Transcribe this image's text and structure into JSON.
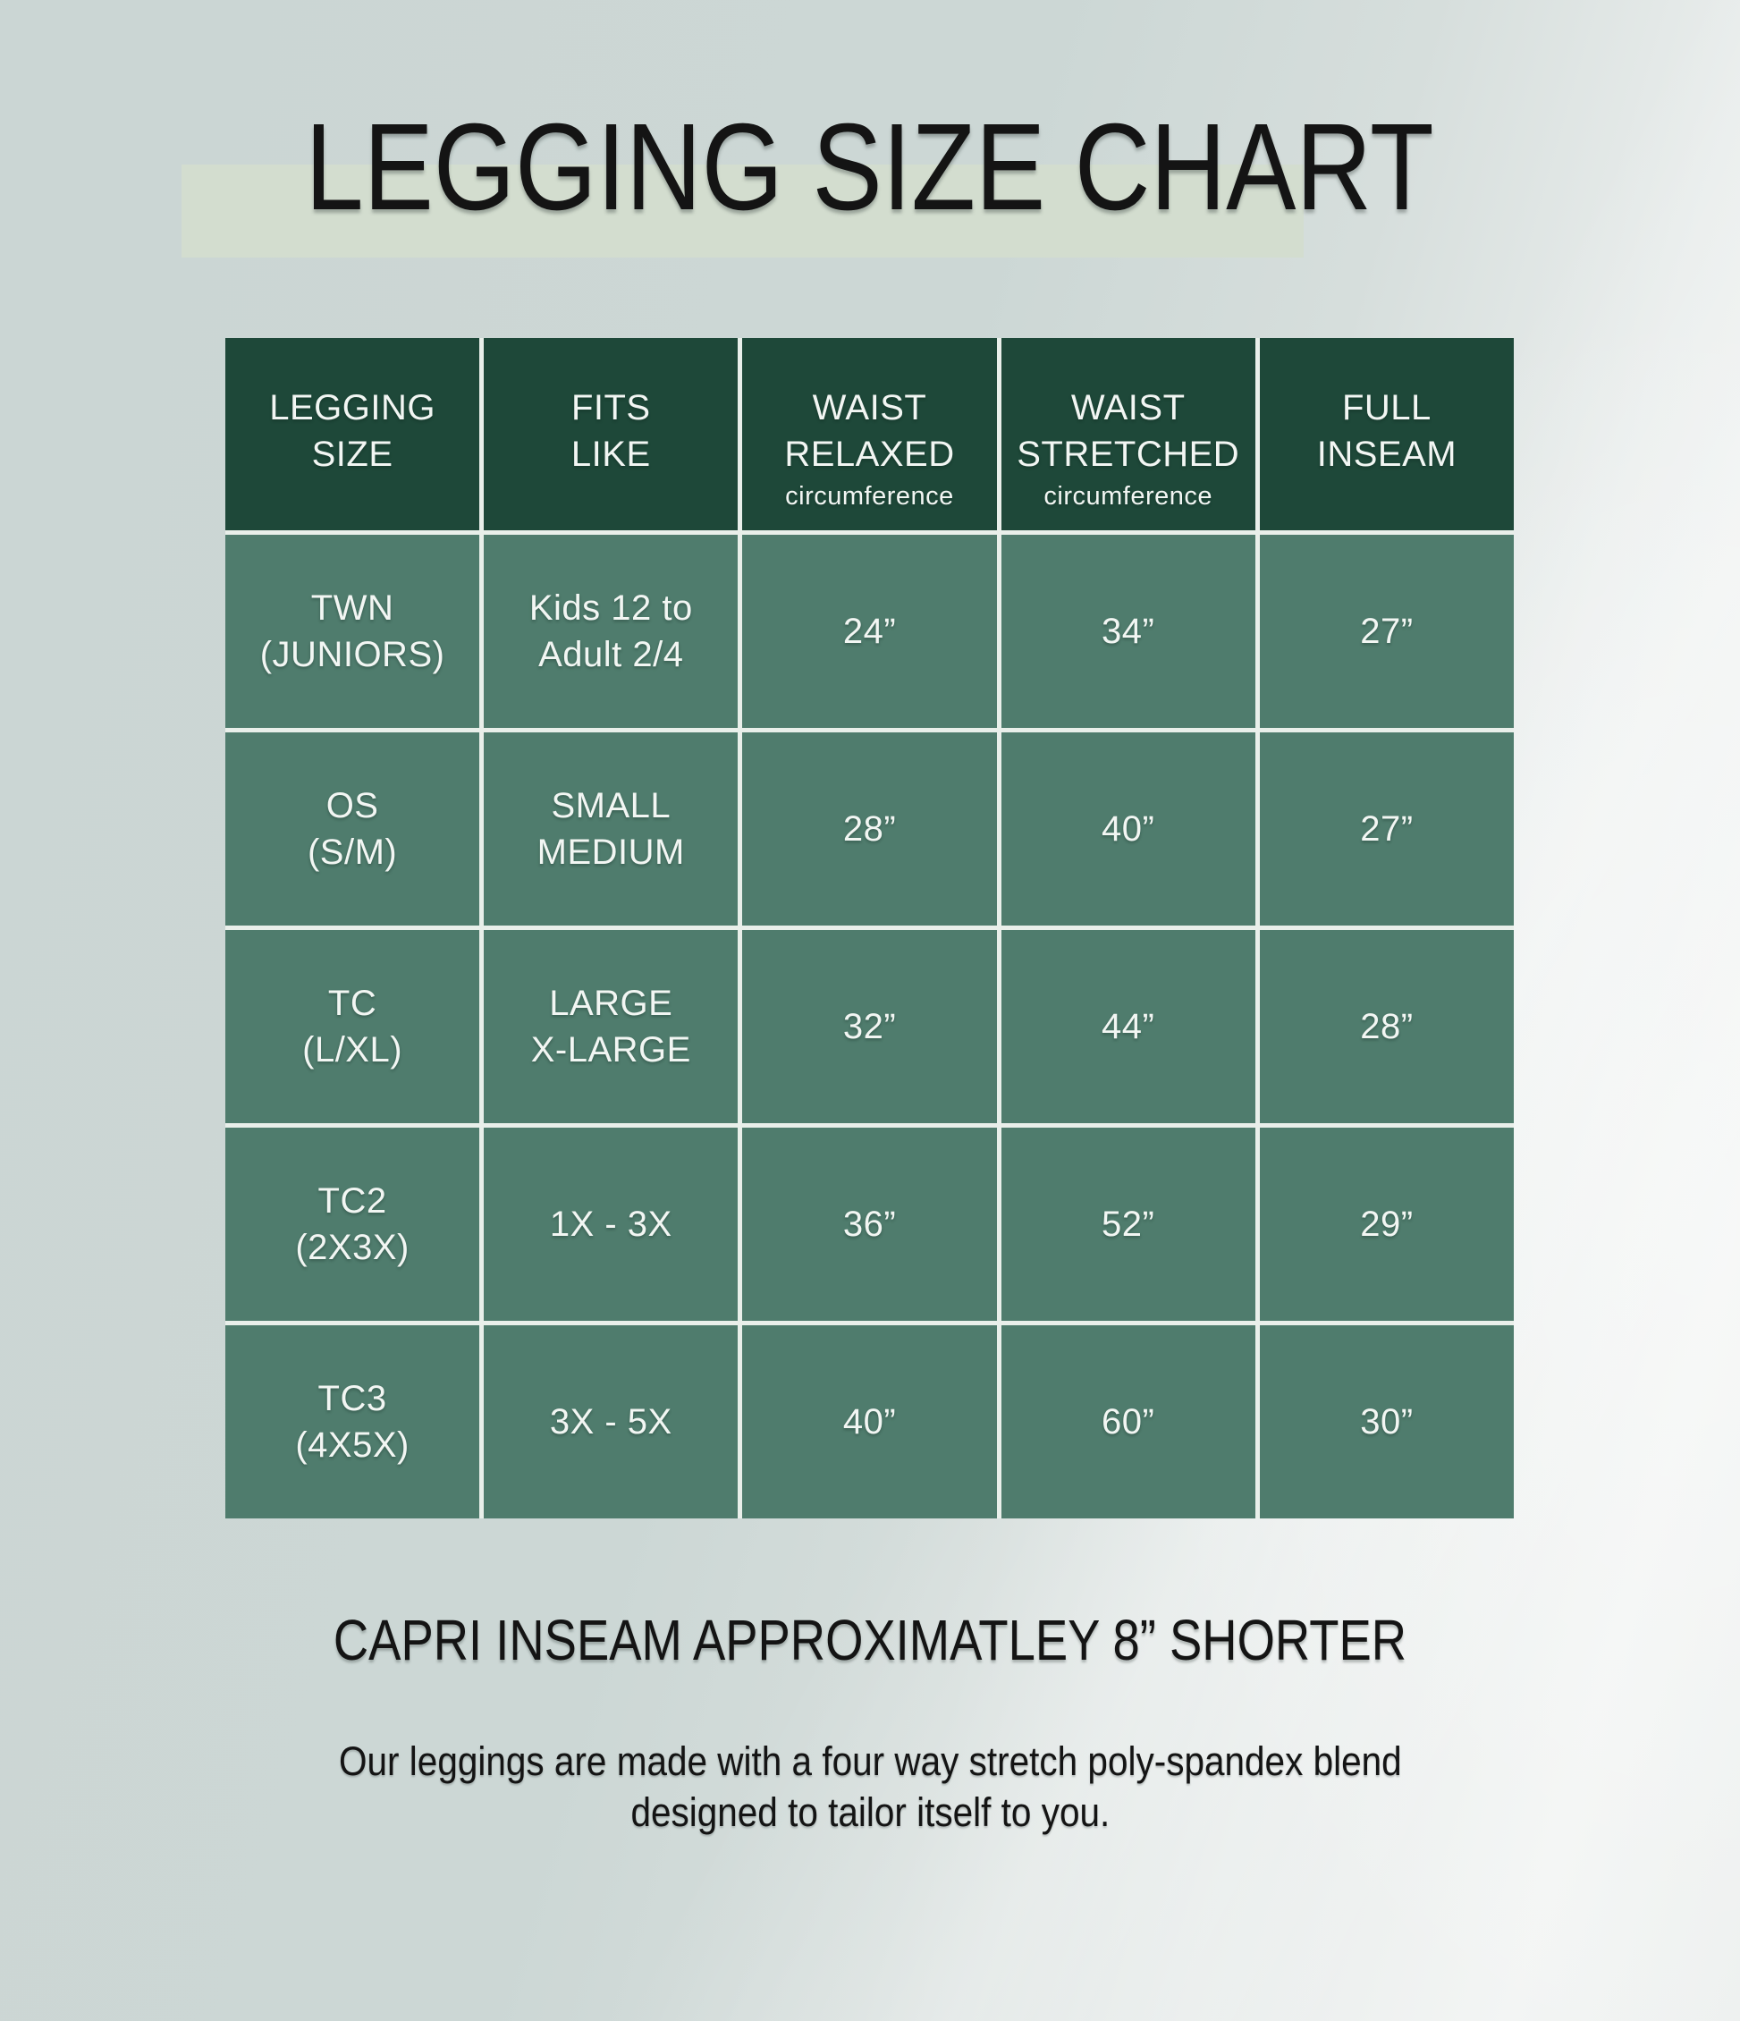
{
  "title": "LEGGING SIZE CHART",
  "table": {
    "headers": [
      {
        "label": "LEGGING\nSIZE",
        "sub": ""
      },
      {
        "label": "FITS\nLIKE",
        "sub": ""
      },
      {
        "label": "WAIST\nRELAXED",
        "sub": "circumference"
      },
      {
        "label": "WAIST\nSTRETCHED",
        "sub": "circumference"
      },
      {
        "label": "FULL\nINSEAM",
        "sub": ""
      }
    ],
    "rows": [
      {
        "cells": [
          "TWN\n(JUNIORS)",
          "Kids 12 to\nAdult 2/4",
          "24”",
          "34”",
          "27”"
        ]
      },
      {
        "cells": [
          "OS\n(S/M)",
          "SMALL\nMEDIUM",
          "28”",
          "40”",
          "27”"
        ]
      },
      {
        "cells": [
          "TC\n(L/XL)",
          "LARGE\nX-LARGE",
          "32”",
          "44”",
          "28”"
        ]
      },
      {
        "cells": [
          "TC2\n(2X3X)",
          "1X - 3X",
          "36”",
          "52”",
          "29”"
        ]
      },
      {
        "cells": [
          "TC3\n(4X5X)",
          "3X - 5X",
          "40”",
          "60”",
          "30”"
        ]
      }
    ]
  },
  "footer": {
    "note": "CAPRI INSEAM APPROXIMATLEY 8” SHORTER",
    "description_line1": "Our leggings are made with a four way stretch poly-spandex blend",
    "description_line2": "designed to tailor itself to you."
  },
  "colors": {
    "header_green": "#1E4839",
    "body_green": "#4F7C6D",
    "grid_line": "#E9EFEA",
    "table_text": "#F2F6F3",
    "heading_text": "#141414",
    "title_band": "#D3DDCF",
    "background_left": "#CBD6D4",
    "background_right": "#F2F4F4"
  },
  "chart_data": {
    "type": "table",
    "title": "LEGGING SIZE CHART",
    "columns": [
      "LEGGING SIZE",
      "FITS LIKE",
      "WAIST RELAXED circumference",
      "WAIST STRETCHED circumference",
      "FULL INSEAM"
    ],
    "rows": [
      [
        "TWN (JUNIORS)",
        "Kids 12 to Adult 2/4",
        "24”",
        "34”",
        "27”"
      ],
      [
        "OS (S/M)",
        "SMALL MEDIUM",
        "28”",
        "40”",
        "27”"
      ],
      [
        "TC (L/XL)",
        "LARGE X-LARGE",
        "32”",
        "44”",
        "28”"
      ],
      [
        "TC2 (2X3X)",
        "1X - 3X",
        "36”",
        "52”",
        "29”"
      ],
      [
        "TC3 (4X5X)",
        "3X - 5X",
        "40”",
        "60”",
        "30”"
      ]
    ],
    "notes": [
      "CAPRI INSEAM APPROXIMATLEY 8” SHORTER",
      "Our leggings are made with a four way stretch poly-spandex blend designed to tailor itself to you."
    ]
  }
}
